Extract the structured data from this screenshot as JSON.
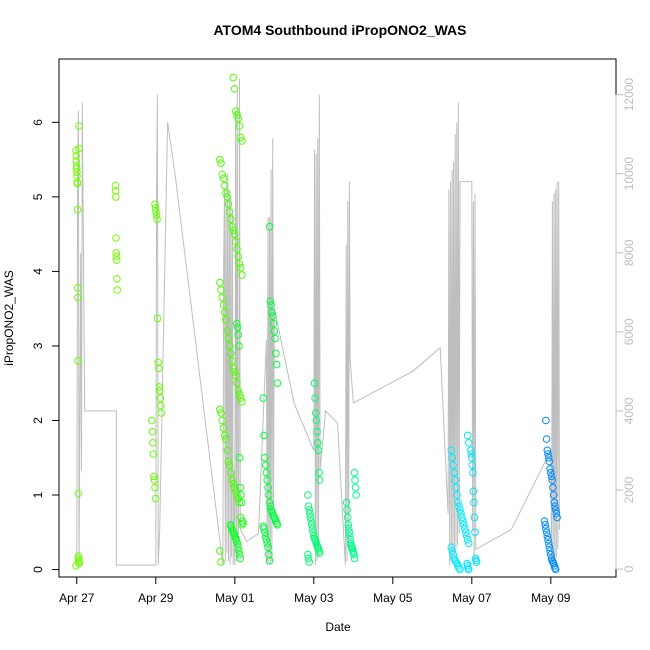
{
  "chart_data": {
    "type": "scatter",
    "title": "ATOM4 Southbound iPropONO2_WAS",
    "xlabel": "Date",
    "ylabel": "iPropONO2_WAS",
    "x_unit": "days since Apr 27",
    "xlim": [
      -0.45,
      13.65
    ],
    "ylim": [
      -0.1,
      6.85
    ],
    "y2lim": [
      -200,
      12900
    ],
    "x_ticks": [
      {
        "value": 0,
        "label": "Apr 27"
      },
      {
        "value": 2,
        "label": "Apr 29"
      },
      {
        "value": 4,
        "label": "May 01"
      },
      {
        "value": 6,
        "label": "May 03"
      },
      {
        "value": 8,
        "label": "May 05"
      },
      {
        "value": 10,
        "label": "May 07"
      },
      {
        "value": 12,
        "label": "May 09"
      }
    ],
    "y_ticks": [
      "0",
      "1",
      "2",
      "3",
      "4",
      "5",
      "6"
    ],
    "y2_ticks": [
      "0",
      "2000",
      "4000",
      "6000",
      "8000",
      "10000",
      "12000"
    ],
    "colors": {
      "altitude_line": "#bebebe",
      "axis": "#000000",
      "right_axis": "#bebebe"
    },
    "altitude_series": {
      "name": "altitude",
      "points": [
        [
          0.0,
          100
        ],
        [
          0.02,
          9900
        ],
        [
          0.04,
          11600
        ],
        [
          0.06,
          200
        ],
        [
          0.08,
          4000
        ],
        [
          0.1,
          8000
        ],
        [
          0.12,
          2500
        ],
        [
          0.14,
          11800
        ],
        [
          0.2,
          4000
        ],
        [
          1.0,
          4000
        ],
        [
          1.0,
          100
        ],
        [
          1.05,
          100
        ],
        [
          2.0,
          100
        ],
        [
          2.02,
          9600
        ],
        [
          2.04,
          12000
        ],
        [
          2.06,
          100
        ],
        [
          2.1,
          1000
        ],
        [
          2.3,
          11300
        ],
        [
          2.5,
          9900
        ],
        [
          3.7,
          100
        ],
        [
          3.72,
          7800
        ],
        [
          3.74,
          9600
        ],
        [
          3.76,
          200
        ],
        [
          3.78,
          9800
        ],
        [
          3.8,
          400
        ],
        [
          3.82,
          10000
        ],
        [
          3.84,
          200
        ],
        [
          3.86,
          9600
        ],
        [
          3.88,
          100
        ],
        [
          3.9,
          9400
        ],
        [
          3.92,
          300
        ],
        [
          3.94,
          9000
        ],
        [
          3.96,
          100
        ],
        [
          3.98,
          2500
        ],
        [
          4.0,
          100
        ],
        [
          4.02,
          11600
        ],
        [
          4.04,
          200
        ],
        [
          4.06,
          12100
        ],
        [
          4.08,
          300
        ],
        [
          4.1,
          1500
        ],
        [
          4.12,
          12400
        ],
        [
          4.14,
          1000
        ],
        [
          4.3,
          700
        ],
        [
          4.6,
          900
        ],
        [
          4.8,
          5800
        ],
        [
          4.82,
          100
        ],
        [
          4.84,
          8900
        ],
        [
          4.86,
          200
        ],
        [
          4.88,
          8900
        ],
        [
          4.9,
          100
        ],
        [
          4.92,
          10100
        ],
        [
          4.94,
          200
        ],
        [
          4.96,
          10900
        ],
        [
          4.98,
          1500
        ],
        [
          5.0,
          6600
        ],
        [
          5.5,
          4200
        ],
        [
          6.0,
          3000
        ],
        [
          6.02,
          10600
        ],
        [
          6.04,
          100
        ],
        [
          6.06,
          10500
        ],
        [
          6.08,
          200
        ],
        [
          6.1,
          10900
        ],
        [
          6.12,
          300
        ],
        [
          6.14,
          12000
        ],
        [
          6.16,
          2500
        ],
        [
          6.3,
          4000
        ],
        [
          6.6,
          3700
        ],
        [
          6.8,
          100
        ],
        [
          6.82,
          8200
        ],
        [
          6.84,
          200
        ],
        [
          6.86,
          9300
        ],
        [
          6.88,
          500
        ],
        [
          6.9,
          9800
        ],
        [
          6.92,
          5300
        ],
        [
          7.0,
          4200
        ],
        [
          8.5,
          5000
        ],
        [
          9.2,
          5600
        ],
        [
          9.4,
          1400
        ],
        [
          9.42,
          9600
        ],
        [
          9.44,
          100
        ],
        [
          9.46,
          9800
        ],
        [
          9.48,
          200
        ],
        [
          9.5,
          10100
        ],
        [
          9.52,
          300
        ],
        [
          9.54,
          10300
        ],
        [
          9.56,
          400
        ],
        [
          9.58,
          11000
        ],
        [
          9.6,
          500
        ],
        [
          9.62,
          11300
        ],
        [
          9.64,
          600
        ],
        [
          9.66,
          11800
        ],
        [
          9.68,
          900
        ],
        [
          9.7,
          9800
        ],
        [
          9.8,
          9800
        ],
        [
          10.0,
          9800
        ],
        [
          10.02,
          1000
        ],
        [
          10.04,
          9300
        ],
        [
          10.06,
          100
        ],
        [
          10.08,
          9500
        ],
        [
          10.1,
          500
        ],
        [
          11.0,
          1000
        ],
        [
          12.0,
          3000
        ],
        [
          12.02,
          200
        ],
        [
          12.04,
          9300
        ],
        [
          12.06,
          200
        ],
        [
          12.08,
          9500
        ],
        [
          12.1,
          200
        ],
        [
          12.12,
          9600
        ],
        [
          12.14,
          300
        ],
        [
          12.16,
          9800
        ],
        [
          12.18,
          500
        ],
        [
          12.2,
          9800
        ],
        [
          12.22,
          1000
        ]
      ]
    },
    "clusters": [
      {
        "x": 0.02,
        "spread": 0.04,
        "color": "#6fff00",
        "values": [
          0.05,
          0.08,
          0.1,
          0.12,
          0.15,
          0.18,
          1.02,
          2.8,
          3.65,
          3.78,
          4.83,
          5.18,
          5.2,
          5.28,
          5.33,
          5.38,
          5.42,
          5.48,
          5.55,
          5.62,
          5.65,
          5.95
        ]
      },
      {
        "x": 1.0,
        "spread": 0.05,
        "color": "#75ff00",
        "values": [
          3.75,
          3.9,
          4.15,
          4.2,
          4.25,
          4.45,
          5.0,
          5.08,
          5.15
        ]
      },
      {
        "x": 2.02,
        "spread": 0.12,
        "color": "#66ff00",
        "values": [
          0.95,
          1.1,
          1.2,
          1.25,
          1.55,
          1.7,
          1.85,
          2.0,
          2.1,
          2.2,
          2.3,
          2.4,
          2.45,
          2.7,
          2.78,
          3.37,
          4.7,
          4.75,
          4.8,
          4.85,
          4.9
        ]
      },
      {
        "x": 3.9,
        "spread": 0.28,
        "color": "#4eff00",
        "values": [
          0.1,
          0.25,
          0.6,
          0.7,
          0.9,
          0.95,
          1.0,
          1.05,
          1.1,
          1.15,
          1.2,
          1.3,
          1.4,
          1.45,
          1.6,
          1.75,
          1.8,
          1.9,
          2.0,
          2.1,
          2.15,
          2.25,
          2.3,
          2.35,
          2.4,
          2.5,
          2.6,
          2.65,
          2.7,
          2.8,
          2.9,
          3.0,
          3.1,
          3.2,
          3.35,
          3.45,
          3.55,
          3.65,
          3.75,
          3.85,
          3.95,
          4.05,
          4.1,
          4.2,
          4.3,
          4.4,
          4.5,
          4.55,
          4.6,
          4.7,
          4.8,
          4.9,
          5.0,
          5.05,
          5.15,
          5.25,
          5.3,
          5.45,
          5.5,
          5.75,
          5.8,
          5.95,
          6.05,
          6.1,
          6.15,
          6.45,
          6.6
        ]
      },
      {
        "x": 4.05,
        "spread": 0.16,
        "color": "#12ff2a",
        "values": [
          0.15,
          0.2,
          0.25,
          0.3,
          0.35,
          0.38,
          0.4,
          0.42,
          0.45,
          0.48,
          0.5,
          0.52,
          0.55,
          0.58,
          0.6,
          0.62,
          0.65,
          0.9,
          1.0,
          1.1,
          1.5,
          3.0,
          3.15,
          3.25,
          3.3
        ]
      },
      {
        "x": 4.9,
        "spread": 0.18,
        "color": "#00ff3a",
        "values": [
          0.12,
          0.2,
          0.3,
          0.35,
          0.4,
          0.45,
          0.5,
          0.55,
          0.58,
          0.6,
          0.62,
          0.65,
          0.68,
          0.7,
          0.72,
          0.75,
          0.78,
          0.8,
          0.85,
          0.9,
          1.0,
          1.1,
          1.2,
          1.3,
          1.4,
          1.5,
          1.8,
          2.3,
          2.5,
          2.75,
          2.9,
          3.1,
          3.2,
          3.3,
          3.4,
          3.45,
          3.55,
          3.6,
          4.6
        ]
      },
      {
        "x": 6.0,
        "spread": 0.15,
        "color": "#00ff70",
        "values": [
          0.1,
          0.15,
          0.2,
          0.22,
          0.25,
          0.28,
          0.3,
          0.32,
          0.35,
          0.38,
          0.4,
          0.42,
          0.45,
          0.5,
          0.55,
          0.6,
          0.65,
          0.7,
          0.75,
          0.8,
          0.85,
          1.0,
          1.2,
          1.3,
          1.6,
          1.7,
          1.85,
          2.0,
          2.1,
          2.3,
          2.5
        ]
      },
      {
        "x": 6.95,
        "spread": 0.12,
        "color": "#00ff8a",
        "values": [
          0.15,
          0.2,
          0.22,
          0.25,
          0.28,
          0.3,
          0.32,
          0.35,
          0.4,
          0.45,
          0.5,
          0.55,
          0.6,
          0.7,
          0.8,
          0.9,
          1.0,
          1.1,
          1.2,
          1.3
        ]
      },
      {
        "x": 9.7,
        "spread": 0.22,
        "color": "#00eaff",
        "values": [
          0.0,
          0.02,
          0.05,
          0.08,
          0.1,
          0.12,
          0.15,
          0.2,
          0.25,
          0.3,
          0.35,
          0.4,
          0.45,
          0.5,
          0.55,
          0.6,
          0.65,
          0.7,
          0.75,
          0.8,
          0.85,
          0.9,
          1.0,
          1.1,
          1.2,
          1.3,
          1.4,
          1.5,
          1.6,
          1.7,
          1.8
        ]
      },
      {
        "x": 10.0,
        "spread": 0.12,
        "color": "#00e4ff",
        "values": [
          0.0,
          0.02,
          0.05,
          0.08,
          0.1,
          0.12,
          0.15,
          0.5,
          0.7,
          0.9,
          1.05,
          1.3,
          1.4,
          1.5,
          1.55,
          1.6
        ]
      },
      {
        "x": 12.0,
        "spread": 0.16,
        "color": "#008cff",
        "values": [
          0.0,
          0.02,
          0.05,
          0.08,
          0.1,
          0.12,
          0.15,
          0.2,
          0.25,
          0.3,
          0.35,
          0.4,
          0.45,
          0.5,
          0.55,
          0.6,
          0.65,
          0.7,
          0.75,
          0.8,
          0.85,
          0.9,
          1.0,
          1.1,
          1.2,
          1.25,
          1.3,
          1.35,
          1.45,
          1.5,
          1.55,
          1.6,
          1.75,
          2.0
        ]
      }
    ]
  }
}
